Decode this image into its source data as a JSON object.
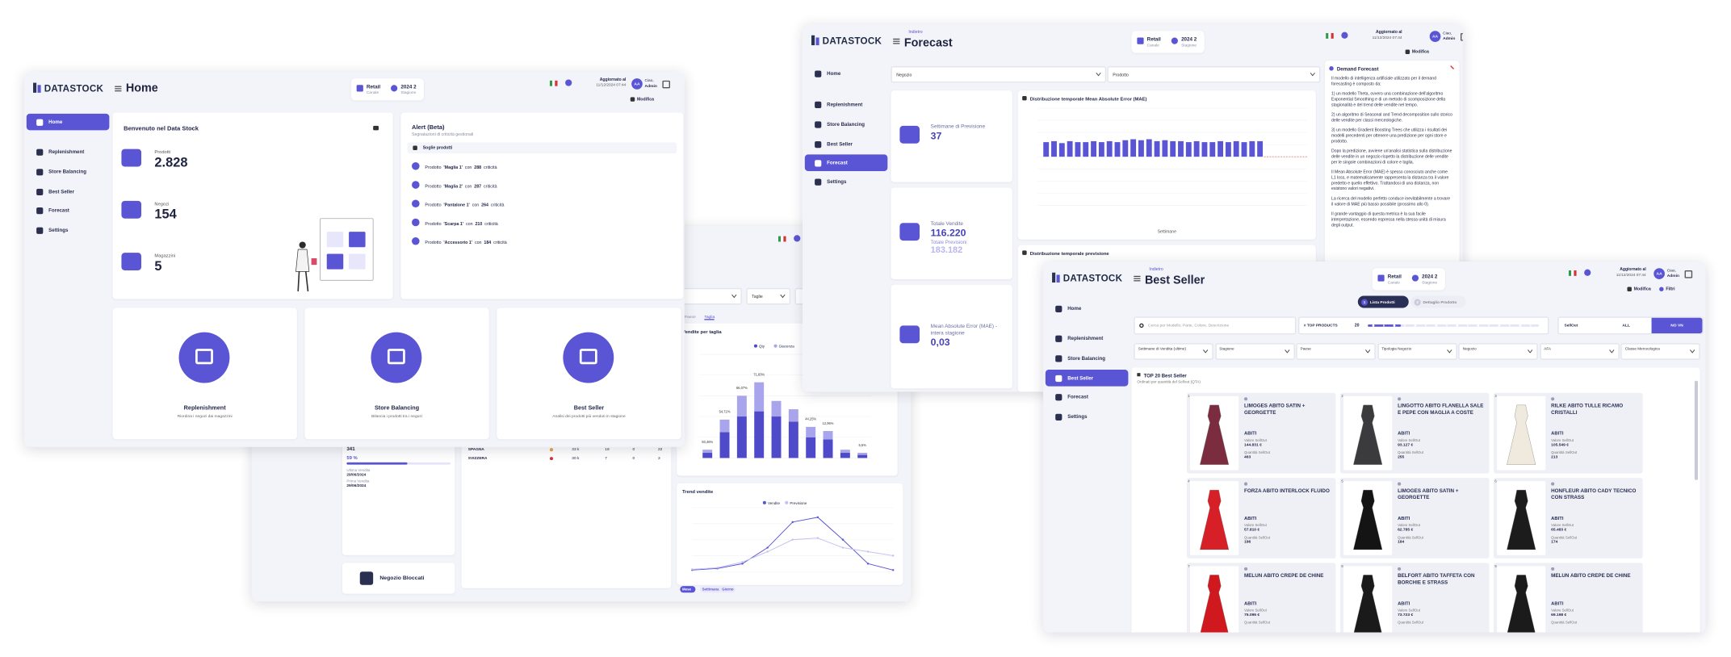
{
  "home": {
    "logo": "DATASTOCK",
    "title": "Home",
    "channel": {
      "value": "Retail",
      "label": "Canale"
    },
    "season": {
      "value": "2024 2",
      "label": "Stagione"
    },
    "updated_label": "Aggiornato al",
    "updated_at": "11/12/2024 07:44",
    "user_initials": "AA",
    "greeting": "Ciao,",
    "user": "Admin",
    "edit": "Modifica",
    "nav": [
      "Home",
      "Replenishment",
      "Store Balancing",
      "Best Seller",
      "Forecast",
      "Settings"
    ],
    "welcome": "Benvenuto nel Data Stock",
    "stats": [
      {
        "label": "Prodotti",
        "value": "2.828"
      },
      {
        "label": "Negozi",
        "value": "154"
      },
      {
        "label": "Magazzini",
        "value": "5"
      }
    ],
    "alert": {
      "title": "Alert (Beta)",
      "subtitle": "Segnalazioni di criticità gestionali",
      "filter": "Soglie prodotti",
      "prefix": "Prodotto",
      "mid": "con",
      "suffix": "criticità",
      "items": [
        {
          "product": "'Maglia 1'",
          "count": "288"
        },
        {
          "product": "'Maglia 2'",
          "count": "287"
        },
        {
          "product": "'Pantalone 1'",
          "count": "264"
        },
        {
          "product": "'Scarpa 1'",
          "count": "210"
        },
        {
          "product": "'Accessorio 1'",
          "count": "184"
        }
      ]
    },
    "cards": [
      {
        "title": "Replenishment",
        "text": "Riordina i negozi dai magazzini"
      },
      {
        "title": "Store Balancing",
        "text": "Bilancia i prodotti tra i negozi"
      },
      {
        "title": "Best Seller",
        "text": "Analisi dei prodotti più venduti in stagione"
      }
    ]
  },
  "sales": {
    "filter": "Taglie",
    "kpi": "341",
    "percent": "59 %",
    "dates": [
      {
        "label": "Ultima Vendita",
        "value": "29/06/2024"
      },
      {
        "label": "Prima Vendita",
        "value": "29/06/2024"
      }
    ],
    "rows": [
      [
        "SPAGNA",
        "33 k",
        "18",
        "0",
        "22"
      ],
      [
        "SVIZZERA",
        "30 k",
        "7",
        "0",
        "3"
      ]
    ],
    "blocked": "Negozio Bloccati",
    "tabs": [
      "Paese",
      "Taglia"
    ],
    "size_chart": {
      "type": "bar",
      "title": "Vendite per taglia",
      "ylim": [
        0,
        100
      ],
      "series": [
        {
          "name": "Qty",
          "color": "#4f4ac9",
          "values": [
            5,
            25,
            40,
            45,
            40,
            35,
            20,
            18,
            5,
            3
          ]
        },
        {
          "name": "Giacenza",
          "color": "#a8a5ec",
          "values": [
            3,
            12,
            20,
            28,
            15,
            12,
            10,
            8,
            3,
            2
          ]
        }
      ],
      "percent_labels": [
        "93,46%",
        "54,72%",
        "66,07%",
        "71,83%",
        null,
        null,
        "44,25%",
        "12,96%",
        null,
        "5,5%"
      ]
    },
    "trend_chart": {
      "type": "line",
      "title": "Trend vendite",
      "ylim": [
        0,
        80
      ],
      "series": [
        {
          "name": "Vendite",
          "color": "#5a55d4",
          "values": [
            2,
            4,
            10,
            30,
            62,
            68,
            40,
            10,
            2
          ]
        },
        {
          "name": "Previsione",
          "color": "#c3c1f2",
          "values": [
            3,
            5,
            12,
            25,
            40,
            42,
            30,
            25,
            20
          ]
        }
      ]
    },
    "periods": [
      "Mese",
      "Settimana",
      "Giorno"
    ]
  },
  "forecast": {
    "back": "Indietro",
    "title": "Forecast",
    "filters": [
      "Negozio",
      "Prodotto"
    ],
    "kpis": [
      {
        "label": "Settimane di Previsione",
        "value": "37"
      },
      {
        "label": "Totale Vendite",
        "value": "116.220",
        "label2": "Totale Previsioni",
        "value2": "183.182"
      },
      {
        "label": "Mean Absolute Error (MAE) - intera stagione",
        "value": "0,03"
      }
    ],
    "mae_chart": {
      "type": "bar",
      "title": "Distribuzione temporale Mean Absolute Error (MAE)",
      "x_label": "Settimane",
      "color": "#5a55d4",
      "ylim": [
        -0.05,
        0.05
      ],
      "values": [
        0.015,
        0.016,
        0.014,
        0.016,
        0.015,
        0.015,
        0.016,
        0.015,
        0.016,
        0.015,
        0.017,
        0.018,
        0.017,
        0.018,
        0.016,
        0.017,
        0.016,
        0.016,
        0.015,
        0.016,
        0.015,
        0.015,
        0.016,
        0.015,
        0.016,
        0.015,
        0.016,
        0.016
      ]
    },
    "forecast_chart_title": "Distribuzione temporale previsione",
    "panel": {
      "title": "Demand Forecast",
      "paragraphs": [
        "Il modello di intelligenza artificiale utilizzato per il demand forecasting è composto da:",
        "1) un modello Theta, ovvero una combinazione dell'algoritmo Exponential Smoothing e di un metodo di scomposizione della stagionalità e del trend delle vendite nel tempo.",
        "2) un algoritmo di Seasonal and Trend decomposition sullo storico delle vendite per classi merceologiche.",
        "3) un modello Gradient Boosting Trees che utilizza i risultati dei modelli precedenti per ottenere una predizione per ogni store e prodotto.",
        "Dopo la predizione, avviene un'analisi statistica sulla distribuzione delle vendite in un negozio rispetto la distribuzione delle vendite per le singole combinazioni di colore e taglia.",
        "Il Mean Absolute Error (MAE) è spesso conosciuto anche come L1 loss, e matematicamente rappresenta la distanza tra il valore predetto e quello effettivo. Trattandosi di una distanza, non esistono valori negativi.",
        "La ricerca del modello perfetto conduce inevitabilmente a trovare il valore di MAE più basso possibile (prossimo allo 0).",
        "Il grande vantaggio di questa metrica è la sua facile interpretazione, essendo espressa nella stessa unità di misura degli output."
      ]
    }
  },
  "best_seller": {
    "back": "Indietro",
    "title": "Best Seller",
    "filters_button": "Filtri",
    "steps": [
      {
        "number": "1",
        "label": "Lista Prodotti"
      },
      {
        "number": "2",
        "label": "Dettaglio Prodotto"
      }
    ],
    "search": "Cerca per Modello, Parte, Colore, Descrizione",
    "top_label": "# TOP PRODUCTS",
    "top_value": "20",
    "toggle": [
      "SellOut",
      "ALL",
      "NO VN"
    ],
    "filters": [
      "Settimane di Vendita (ultime)",
      "Stagione",
      "Paese",
      "Tipologia Negozio",
      "Negozio",
      "AFA",
      "Classe Merceologica"
    ],
    "section_title": "TOP 20 Best Seller",
    "section_subtitle": "Ordinati per quantità del Sellout (QTA)",
    "value_label": "Valore SellOut",
    "qty_label": "Quantità SellOut",
    "products": [
      {
        "rank": "1",
        "name": "LIMOGES ABITO SATIN + GEORGETTE",
        "category": "ABITI",
        "value": "144.831 €",
        "qty": "463",
        "color": "#7b2d3f"
      },
      {
        "rank": "2",
        "name": "LINGOTTO ABITO FLANELLA SALE E PEPE CON MAGLIA A COSTE",
        "category": "ABITI",
        "value": "93.127 €",
        "qty": "255",
        "color": "#3b3b3d"
      },
      {
        "rank": "3",
        "name": "RILKE ABITO TULLE RICAMO CRISTALLI",
        "category": "ABITI",
        "value": "105.549 €",
        "qty": "213",
        "color": "#efeadd"
      },
      {
        "rank": "4",
        "name": "FORZA ABITO INTERLOCK FLUIDO",
        "category": "ABITI",
        "value": "57.810 €",
        "qty": "196",
        "color": "#d61f26"
      },
      {
        "rank": "5",
        "name": "LIMOGES ABITO SATIN + GEORGETTE",
        "category": "ABITI",
        "value": "62.785 €",
        "qty": "184",
        "color": "#141414"
      },
      {
        "rank": "6",
        "name": "HONFLEUR ABITO CADY TECNICO CON STRASS",
        "category": "ABITI",
        "value": "65.483 €",
        "qty": "174",
        "color": "#1c1c1c"
      },
      {
        "rank": "7",
        "name": "MELUN ABITO CREPE DE CHINE",
        "category": "ABITI",
        "value": "75.095 €",
        "color": "#d0191f"
      },
      {
        "rank": "8",
        "name": "BELFORT ABITO TAFFETA CON BORCHIE E STRASS",
        "category": "ABITI",
        "value": "73.723 €",
        "color": "#1a1a1a"
      },
      {
        "rank": "9",
        "name": "MELUN ABITO CREPE DE CHINE",
        "category": "ABITI",
        "value": "69.198 €",
        "color": "#1b1b1b"
      }
    ]
  }
}
